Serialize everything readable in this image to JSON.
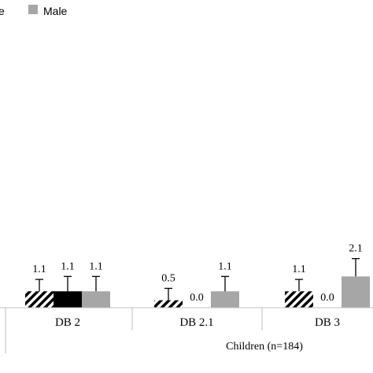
{
  "chart_data": {
    "type": "bar",
    "legend": {
      "placement": "top-left",
      "entries": [
        "e",
        "Male"
      ]
    },
    "series": [
      {
        "name": "",
        "style": "hatched",
        "color": "#000000",
        "values": [
          1.1,
          0.5,
          1.1
        ]
      },
      {
        "name": "",
        "style": "solid",
        "color": "#000000",
        "values": [
          1.1,
          0.0,
          0.0
        ]
      },
      {
        "name": "Male",
        "style": "solid",
        "color": "#a6a6a6",
        "values": [
          1.1,
          1.1,
          2.1
        ]
      }
    ],
    "data_labels": [
      [
        "1.1",
        "1.1",
        "1.1"
      ],
      [
        "0.5",
        "0.0",
        "1.1"
      ],
      [
        "1.1",
        "0.0",
        "2.1"
      ]
    ],
    "has_error_bars": true,
    "error_upper": [
      [
        1.9,
        2.1,
        2.1
      ],
      [
        1.3,
        0.0,
        2.1
      ],
      [
        1.9,
        0.0,
        3.3
      ]
    ],
    "categories": [
      "DB 2",
      "DB 2.1",
      "DB 3"
    ],
    "group_label": "Children (n=184)",
    "ylim": [
      0,
      14
    ],
    "grid": false
  }
}
